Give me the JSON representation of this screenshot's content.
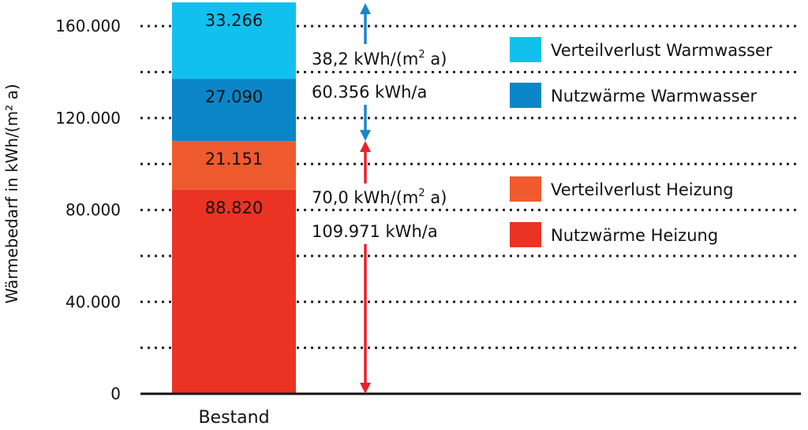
{
  "chart_data": {
    "type": "bar",
    "stacked": true,
    "ylabel": "Wärmebedarf in kWh/(m² a)",
    "ylim": [
      0,
      170000
    ],
    "yticks": [
      0,
      40000,
      80000,
      120000,
      160000
    ],
    "ytick_labels": [
      "0",
      "40.000",
      "80.000",
      "120.000",
      "160.000"
    ],
    "grid_values": [
      20000,
      40000,
      60000,
      80000,
      100000,
      120000,
      140000,
      160000
    ],
    "grid": true,
    "categories": [
      "Bestand"
    ],
    "series": [
      {
        "name": "Nutzwärme Heizung",
        "values": [
          88820
        ],
        "label": "88.820",
        "color": "#ea3323"
      },
      {
        "name": "Verteilverlust Heizung",
        "values": [
          21151
        ],
        "label": "21.151",
        "color": "#ef5a2e"
      },
      {
        "name": "Nutzwärme Warmwasser",
        "values": [
          27090
        ],
        "label": "27.090",
        "color": "#0a86c8"
      },
      {
        "name": "Verteilverlust Warmwasser",
        "values": [
          33266
        ],
        "label": "33.266",
        "color": "#12c0ee"
      }
    ],
    "legend_placement": "right",
    "legend": [
      {
        "label": "Verteilverlust Warmwasser",
        "color": "#12c0ee"
      },
      {
        "label": "Nutzwärme Warmwasser",
        "color": "#0a86c8"
      },
      {
        "label": "Verteilverlust Heizung",
        "color": "#ef5a2e"
      },
      {
        "label": "Nutzwärme Heizung",
        "color": "#ea3323"
      }
    ],
    "annotations": [
      {
        "group": "warmwasser",
        "from": 110000,
        "to": 170000,
        "color": "#1a86c6",
        "line1_prefix": "38,2 kWh/(m",
        "line1_sup": "2",
        "line1_suffix": " a)",
        "line2": "60.356 kWh/a"
      },
      {
        "group": "heizung",
        "from": 0,
        "to": 110000,
        "color": "#e8202a",
        "line1_prefix": "70,0 kWh/(m",
        "line1_sup": "2",
        "line1_suffix": " a)",
        "line2": "109.971 kWh/a"
      }
    ]
  }
}
